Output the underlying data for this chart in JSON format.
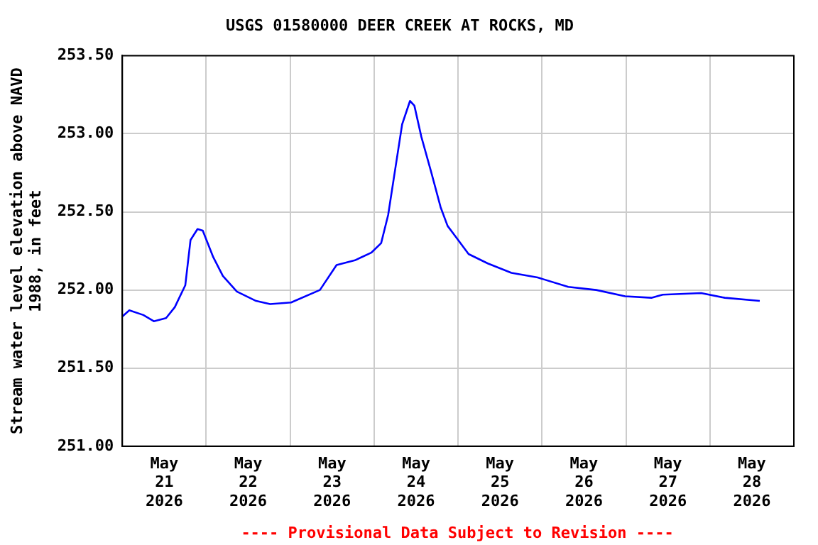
{
  "chart_data": {
    "type": "line",
    "title": "USGS 01580000 DEER CREEK AT ROCKS, MD",
    "ylabel": "Stream water level elevation above NAVD\n1988, in feet",
    "annotations": [
      "---- Provisional Data Subject to Revision ----"
    ],
    "x": [
      "2026-05-21T00:00",
      "2026-05-21T02:00",
      "2026-05-21T06:00",
      "2026-05-21T09:00",
      "2026-05-21T12:30",
      "2026-05-21T15:00",
      "2026-05-21T18:00",
      "2026-05-21T19:30",
      "2026-05-21T21:30",
      "2026-05-21T23:00",
      "2026-05-22T02:00",
      "2026-05-22T04:45",
      "2026-05-22T08:45",
      "2026-05-22T14:15",
      "2026-05-22T18:15",
      "2026-05-23T00:15",
      "2026-05-23T08:30",
      "2026-05-23T13:15",
      "2026-05-23T18:30",
      "2026-05-23T23:15",
      "2026-05-24T02:00",
      "2026-05-24T04:00",
      "2026-05-24T06:00",
      "2026-05-24T08:00",
      "2026-05-24T10:15",
      "2026-05-24T11:30",
      "2026-05-24T13:30",
      "2026-05-24T16:15",
      "2026-05-24T19:00",
      "2026-05-24T21:00",
      "2026-05-24T23:00",
      "2026-05-25T03:00",
      "2026-05-25T08:30",
      "2026-05-25T15:15",
      "2026-05-25T22:45",
      "2026-05-26T07:30",
      "2026-05-26T15:30",
      "2026-05-26T23:45",
      "2026-05-27T07:15",
      "2026-05-27T10:30",
      "2026-05-27T21:30",
      "2026-05-28T04:15",
      "2026-05-28T14:15"
    ],
    "series": [
      {
        "color": "#0000ff",
        "values": [
          251.83,
          251.87,
          251.84,
          251.8,
          251.82,
          251.89,
          252.03,
          252.32,
          252.39,
          252.38,
          252.21,
          252.09,
          251.99,
          251.93,
          251.91,
          251.92,
          252.0,
          252.16,
          252.19,
          252.24,
          252.3,
          252.48,
          252.77,
          253.06,
          253.21,
          253.18,
          252.98,
          252.76,
          252.53,
          252.41,
          252.35,
          252.23,
          252.17,
          252.11,
          252.08,
          252.02,
          252.0,
          251.96,
          251.95,
          251.97,
          251.98,
          251.95,
          251.93
        ]
      }
    ],
    "xlim": [
      "2026-05-21T00:00",
      "2026-05-29T00:00"
    ],
    "xticks": [
      {
        "value": "2026-05-21T00:00",
        "label": null
      },
      {
        "value": "2026-05-21T12:00",
        "label": "May 21 2026"
      },
      {
        "value": "2026-05-22T00:00",
        "label": null
      },
      {
        "value": "2026-05-22T12:00",
        "label": "May 22 2026"
      },
      {
        "value": "2026-05-23T00:00",
        "label": null
      },
      {
        "value": "2026-05-23T12:00",
        "label": "May 23 2026"
      },
      {
        "value": "2026-05-24T00:00",
        "label": null
      },
      {
        "value": "2026-05-24T12:00",
        "label": "May 24 2026"
      },
      {
        "value": "2026-05-25T00:00",
        "label": null
      },
      {
        "value": "2026-05-25T12:00",
        "label": "May 25 2026"
      },
      {
        "value": "2026-05-26T00:00",
        "label": null
      },
      {
        "value": "2026-05-26T12:00",
        "label": "May 26 2026"
      },
      {
        "value": "2026-05-27T00:00",
        "label": null
      },
      {
        "value": "2026-05-27T12:00",
        "label": "May 27 2026"
      },
      {
        "value": "2026-05-28T00:00",
        "label": null
      },
      {
        "value": "2026-05-28T12:00",
        "label": "May 28 2026"
      },
      {
        "value": "2026-05-29T00:00",
        "label": null
      }
    ],
    "ylim": [
      251.0,
      253.5
    ],
    "yticks": [
      {
        "value": 251.0,
        "label": "251.00"
      },
      {
        "value": 251.5,
        "label": "251.50"
      },
      {
        "value": 252.0,
        "label": "252.00"
      },
      {
        "value": 252.5,
        "label": "252.50"
      },
      {
        "value": 253.0,
        "label": "253.00"
      },
      {
        "value": 253.5,
        "label": "253.50"
      }
    ],
    "grid": true,
    "legend": false,
    "marker": "none",
    "line_style": "solid"
  }
}
